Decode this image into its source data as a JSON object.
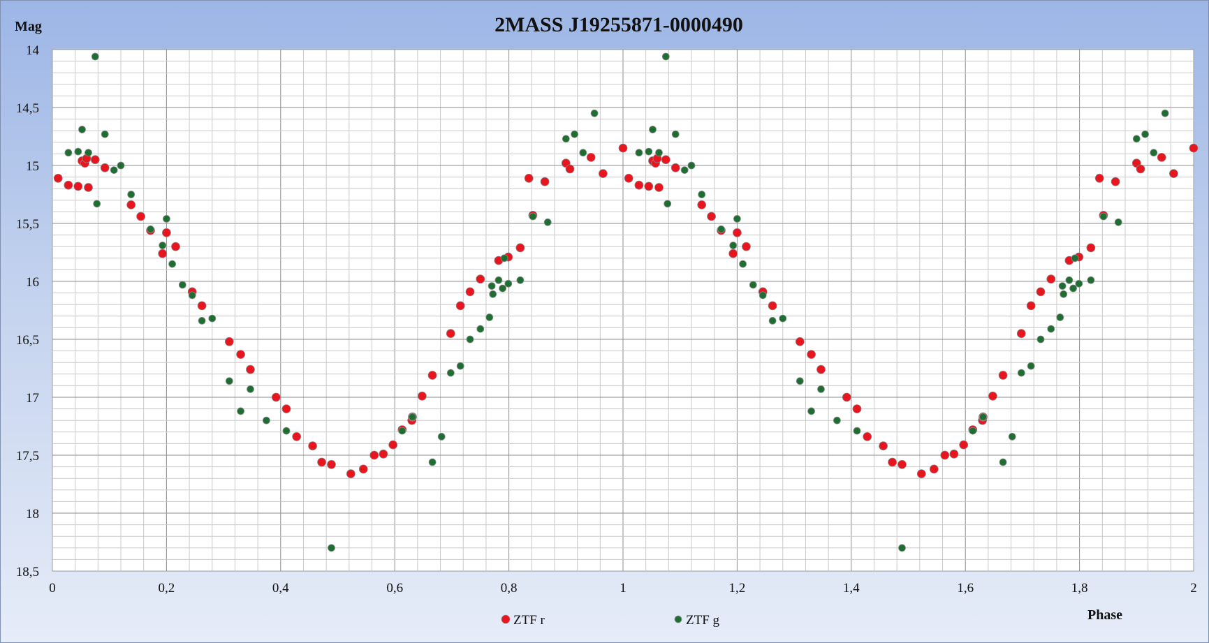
{
  "chart_data": {
    "type": "scatter",
    "title": "2MASS J19255871-0000490",
    "xlabel": "Phase",
    "ylabel": "Mag",
    "xlim": [
      0,
      2
    ],
    "ylim": [
      18.5,
      14
    ],
    "y_inverted": true,
    "x_ticks": [
      "0",
      "0,2",
      "0,4",
      "0,6",
      "0,8",
      "1",
      "1,2",
      "1,4",
      "1,6",
      "1,8",
      "2"
    ],
    "y_ticks": [
      "14",
      "14,5",
      "15",
      "15,5",
      "16",
      "16,5",
      "17",
      "17,5",
      "18",
      "18,5"
    ],
    "grid": true,
    "legend_position": "bottom",
    "series": [
      {
        "name": "ZTF r",
        "color": "#e8141e",
        "points": [
          [
            0.01,
            15.11
          ],
          [
            0.028,
            15.17
          ],
          [
            0.045,
            15.18
          ],
          [
            0.052,
            14.96
          ],
          [
            0.057,
            14.98
          ],
          [
            0.06,
            14.94
          ],
          [
            0.063,
            15.19
          ],
          [
            0.075,
            14.95
          ],
          [
            0.092,
            15.02
          ],
          [
            0.138,
            15.34
          ],
          [
            0.155,
            15.44
          ],
          [
            0.172,
            15.56
          ],
          [
            0.193,
            15.76
          ],
          [
            0.2,
            15.58
          ],
          [
            0.216,
            15.7
          ],
          [
            0.245,
            16.09
          ],
          [
            0.262,
            16.21
          ],
          [
            0.31,
            16.52
          ],
          [
            0.33,
            16.63
          ],
          [
            0.347,
            16.76
          ],
          [
            0.392,
            17.0
          ],
          [
            0.41,
            17.1
          ],
          [
            0.428,
            17.34
          ],
          [
            0.456,
            17.42
          ],
          [
            0.472,
            17.56
          ],
          [
            0.489,
            17.58
          ],
          [
            0.523,
            17.66
          ],
          [
            0.545,
            17.62
          ],
          [
            0.564,
            17.5
          ],
          [
            0.58,
            17.49
          ],
          [
            0.597,
            17.41
          ],
          [
            0.613,
            17.28
          ],
          [
            0.63,
            17.2
          ],
          [
            0.631,
            17.17
          ],
          [
            0.648,
            16.99
          ],
          [
            0.666,
            16.81
          ],
          [
            0.698,
            16.45
          ],
          [
            0.715,
            16.21
          ],
          [
            0.732,
            16.09
          ],
          [
            0.75,
            15.98
          ],
          [
            0.782,
            15.82
          ],
          [
            0.799,
            15.79
          ],
          [
            0.82,
            15.71
          ],
          [
            0.835,
            15.11
          ],
          [
            0.842,
            15.43
          ],
          [
            0.863,
            15.14
          ],
          [
            0.9,
            14.98
          ],
          [
            0.907,
            15.03
          ],
          [
            0.944,
            14.93
          ],
          [
            0.965,
            15.07
          ],
          [
            1.0,
            14.85
          ],
          [
            1.01,
            15.11
          ],
          [
            1.028,
            15.17
          ],
          [
            1.045,
            15.18
          ],
          [
            1.052,
            14.96
          ],
          [
            1.057,
            14.98
          ],
          [
            1.06,
            14.94
          ],
          [
            1.063,
            15.19
          ],
          [
            1.075,
            14.95
          ],
          [
            1.092,
            15.02
          ],
          [
            1.138,
            15.34
          ],
          [
            1.155,
            15.44
          ],
          [
            1.172,
            15.56
          ],
          [
            1.193,
            15.76
          ],
          [
            1.2,
            15.58
          ],
          [
            1.216,
            15.7
          ],
          [
            1.245,
            16.09
          ],
          [
            1.262,
            16.21
          ],
          [
            1.31,
            16.52
          ],
          [
            1.33,
            16.63
          ],
          [
            1.347,
            16.76
          ],
          [
            1.392,
            17.0
          ],
          [
            1.41,
            17.1
          ],
          [
            1.428,
            17.34
          ],
          [
            1.456,
            17.42
          ],
          [
            1.472,
            17.56
          ],
          [
            1.489,
            17.58
          ],
          [
            1.523,
            17.66
          ],
          [
            1.545,
            17.62
          ],
          [
            1.564,
            17.5
          ],
          [
            1.58,
            17.49
          ],
          [
            1.597,
            17.41
          ],
          [
            1.613,
            17.28
          ],
          [
            1.63,
            17.2
          ],
          [
            1.631,
            17.17
          ],
          [
            1.648,
            16.99
          ],
          [
            1.666,
            16.81
          ],
          [
            1.698,
            16.45
          ],
          [
            1.715,
            16.21
          ],
          [
            1.732,
            16.09
          ],
          [
            1.75,
            15.98
          ],
          [
            1.782,
            15.82
          ],
          [
            1.799,
            15.79
          ],
          [
            1.82,
            15.71
          ],
          [
            1.835,
            15.11
          ],
          [
            1.842,
            15.43
          ],
          [
            1.863,
            15.14
          ],
          [
            1.9,
            14.98
          ],
          [
            1.907,
            15.03
          ],
          [
            1.944,
            14.93
          ],
          [
            1.965,
            15.07
          ],
          [
            2.0,
            14.85
          ]
        ]
      },
      {
        "name": "ZTF g",
        "color": "#1e6e32",
        "points": [
          [
            0.028,
            14.89
          ],
          [
            0.045,
            14.88
          ],
          [
            0.052,
            14.69
          ],
          [
            0.063,
            14.89
          ],
          [
            0.075,
            14.06
          ],
          [
            0.078,
            15.33
          ],
          [
            0.092,
            14.73
          ],
          [
            0.108,
            15.04
          ],
          [
            0.12,
            15.0
          ],
          [
            0.138,
            15.25
          ],
          [
            0.172,
            15.55
          ],
          [
            0.193,
            15.69
          ],
          [
            0.2,
            15.46
          ],
          [
            0.21,
            15.85
          ],
          [
            0.228,
            16.03
          ],
          [
            0.245,
            16.12
          ],
          [
            0.262,
            16.34
          ],
          [
            0.28,
            16.32
          ],
          [
            0.31,
            16.86
          ],
          [
            0.33,
            17.12
          ],
          [
            0.347,
            16.93
          ],
          [
            0.375,
            17.2
          ],
          [
            0.41,
            17.29
          ],
          [
            0.489,
            18.3
          ],
          [
            0.613,
            17.29
          ],
          [
            0.631,
            17.17
          ],
          [
            0.666,
            17.56
          ],
          [
            0.682,
            17.34
          ],
          [
            0.698,
            16.79
          ],
          [
            0.715,
            16.73
          ],
          [
            0.732,
            16.5
          ],
          [
            0.75,
            16.41
          ],
          [
            0.766,
            16.31
          ],
          [
            0.77,
            16.04
          ],
          [
            0.772,
            16.11
          ],
          [
            0.782,
            15.99
          ],
          [
            0.789,
            16.06
          ],
          [
            0.792,
            15.8
          ],
          [
            0.799,
            16.02
          ],
          [
            0.82,
            15.99
          ],
          [
            0.842,
            15.44
          ],
          [
            0.868,
            15.49
          ],
          [
            0.9,
            14.77
          ],
          [
            0.915,
            14.73
          ],
          [
            0.93,
            14.89
          ],
          [
            0.95,
            14.55
          ],
          [
            1.028,
            14.89
          ],
          [
            1.045,
            14.88
          ],
          [
            1.052,
            14.69
          ],
          [
            1.063,
            14.89
          ],
          [
            1.075,
            14.06
          ],
          [
            1.078,
            15.33
          ],
          [
            1.092,
            14.73
          ],
          [
            1.108,
            15.04
          ],
          [
            1.12,
            15.0
          ],
          [
            1.138,
            15.25
          ],
          [
            1.172,
            15.55
          ],
          [
            1.193,
            15.69
          ],
          [
            1.2,
            15.46
          ],
          [
            1.21,
            15.85
          ],
          [
            1.228,
            16.03
          ],
          [
            1.245,
            16.12
          ],
          [
            1.262,
            16.34
          ],
          [
            1.28,
            16.32
          ],
          [
            1.31,
            16.86
          ],
          [
            1.33,
            17.12
          ],
          [
            1.347,
            16.93
          ],
          [
            1.375,
            17.2
          ],
          [
            1.41,
            17.29
          ],
          [
            1.489,
            18.3
          ],
          [
            1.613,
            17.29
          ],
          [
            1.631,
            17.17
          ],
          [
            1.666,
            17.56
          ],
          [
            1.682,
            17.34
          ],
          [
            1.698,
            16.79
          ],
          [
            1.715,
            16.73
          ],
          [
            1.732,
            16.5
          ],
          [
            1.75,
            16.41
          ],
          [
            1.766,
            16.31
          ],
          [
            1.77,
            16.04
          ],
          [
            1.772,
            16.11
          ],
          [
            1.782,
            15.99
          ],
          [
            1.789,
            16.06
          ],
          [
            1.792,
            15.8
          ],
          [
            1.799,
            16.02
          ],
          [
            1.82,
            15.99
          ],
          [
            1.842,
            15.44
          ],
          [
            1.868,
            15.49
          ],
          [
            1.9,
            14.77
          ],
          [
            1.915,
            14.73
          ],
          [
            1.93,
            14.89
          ],
          [
            1.95,
            14.55
          ]
        ]
      }
    ]
  }
}
